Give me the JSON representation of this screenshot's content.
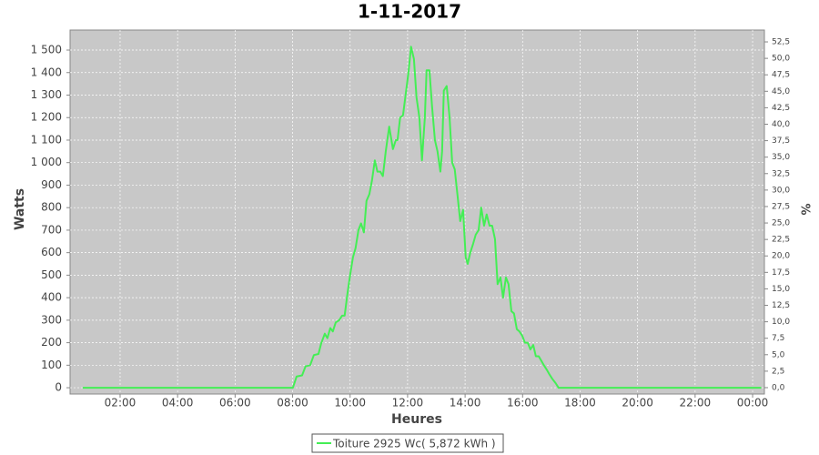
{
  "chart_data": {
    "type": "line",
    "title": "1-11-2017",
    "x_label": "Heures",
    "y_label": "Watts",
    "y2_label": "%",
    "x": [
      0.7,
      7.95,
      8.01,
      8.14,
      8.33,
      8.45,
      8.61,
      8.74,
      8.9,
      8.99,
      9.12,
      9.21,
      9.31,
      9.4,
      9.5,
      9.62,
      9.72,
      9.81,
      9.91,
      10.0,
      10.1,
      10.19,
      10.29,
      10.38,
      10.48,
      10.57,
      10.67,
      10.76,
      10.86,
      10.95,
      11.05,
      11.14,
      11.24,
      11.36,
      11.49,
      11.59,
      11.65,
      11.74,
      11.84,
      11.93,
      12.03,
      12.12,
      12.22,
      12.31,
      12.41,
      12.5,
      12.6,
      12.66,
      12.76,
      12.85,
      12.95,
      13.04,
      13.14,
      13.2,
      13.26,
      13.36,
      13.46,
      13.55,
      13.64,
      13.74,
      13.83,
      13.93,
      14.02,
      14.09,
      14.18,
      14.28,
      14.37,
      14.47,
      14.56,
      14.66,
      14.75,
      14.85,
      14.94,
      15.04,
      15.13,
      15.23,
      15.32,
      15.42,
      15.51,
      15.61,
      15.7,
      15.8,
      15.89,
      15.99,
      16.08,
      16.18,
      16.27,
      16.37,
      16.46,
      16.56,
      16.65,
      16.74,
      16.84,
      16.93,
      17.03,
      17.15,
      17.25,
      24.3
    ],
    "series": [
      {
        "name": "Toiture 2925 Wc( 5,872 kWh )",
        "color": "#44ee55",
        "values": [
          0,
          0,
          0,
          50,
          55,
          95,
          100,
          145,
          150,
          195,
          240,
          220,
          265,
          250,
          290,
          300,
          320,
          320,
          420,
          500,
          580,
          620,
          700,
          730,
          690,
          830,
          860,
          920,
          1010,
          960,
          960,
          940,
          1050,
          1160,
          1060,
          1100,
          1100,
          1200,
          1210,
          1300,
          1400,
          1515,
          1460,
          1290,
          1200,
          1010,
          1200,
          1410,
          1410,
          1250,
          1100,
          1050,
          960,
          1050,
          1320,
          1340,
          1200,
          1000,
          970,
          850,
          740,
          790,
          580,
          550,
          600,
          640,
          680,
          700,
          800,
          720,
          770,
          720,
          720,
          660,
          460,
          490,
          400,
          490,
          460,
          340,
          330,
          260,
          250,
          230,
          200,
          200,
          170,
          190,
          140,
          140,
          120,
          100,
          80,
          60,
          40,
          20,
          0,
          0
        ]
      }
    ],
    "xlim": [
      0.26,
      24.41
    ],
    "xticks": [
      {
        "value": 2,
        "label": "02:00"
      },
      {
        "value": 4,
        "label": "04:00"
      },
      {
        "value": 6,
        "label": "06:00"
      },
      {
        "value": 8,
        "label": "08:00"
      },
      {
        "value": 10,
        "label": "10:00"
      },
      {
        "value": 12,
        "label": "12:00"
      },
      {
        "value": 14,
        "label": "14:00"
      },
      {
        "value": 16,
        "label": "16:00"
      },
      {
        "value": 18,
        "label": "18:00"
      },
      {
        "value": 20,
        "label": "20:00"
      },
      {
        "value": 22,
        "label": "22:00"
      },
      {
        "value": 24,
        "label": "00:00"
      }
    ],
    "ylim": [
      -28,
      1589
    ],
    "yticks": [
      0,
      100,
      200,
      300,
      400,
      500,
      600,
      700,
      800,
      900,
      {
        "value": 1000,
        "label": "1 000"
      },
      {
        "value": 1100,
        "label": "1 100"
      },
      {
        "value": 1200,
        "label": "1 200"
      },
      {
        "value": 1300,
        "label": "1 300"
      },
      {
        "value": 1400,
        "label": "1 400"
      },
      {
        "value": 1500,
        "label": "1 500"
      }
    ],
    "y2lim": [
      -0.97,
      54.3
    ],
    "y2ticks": [
      {
        "value": 0,
        "label": "0,0"
      },
      {
        "value": 2.5,
        "label": "2,5"
      },
      {
        "value": 5,
        "label": "5,0"
      },
      {
        "value": 7.5,
        "label": "7,5"
      },
      {
        "value": 10,
        "label": "10,0"
      },
      {
        "value": 12.5,
        "label": "12,5"
      },
      {
        "value": 15,
        "label": "15,0"
      },
      {
        "value": 17.5,
        "label": "17,5"
      },
      {
        "value": 20,
        "label": "20,0"
      },
      {
        "value": 22.5,
        "label": "22,5"
      },
      {
        "value": 25,
        "label": "25,0"
      },
      {
        "value": 27.5,
        "label": "27,5"
      },
      {
        "value": 30,
        "label": "30,0"
      },
      {
        "value": 32.5,
        "label": "32,5"
      },
      {
        "value": 35,
        "label": "35,0"
      },
      {
        "value": 37.5,
        "label": "37,5"
      },
      {
        "value": 40,
        "label": "40,0"
      },
      {
        "value": 42.5,
        "label": "42,5"
      },
      {
        "value": 45,
        "label": "45,0"
      },
      {
        "value": 47.5,
        "label": "47,5"
      },
      {
        "value": 50,
        "label": "50,0"
      },
      {
        "value": 52.5,
        "label": "52,5"
      }
    ],
    "grid": true,
    "legend": "bottom"
  }
}
